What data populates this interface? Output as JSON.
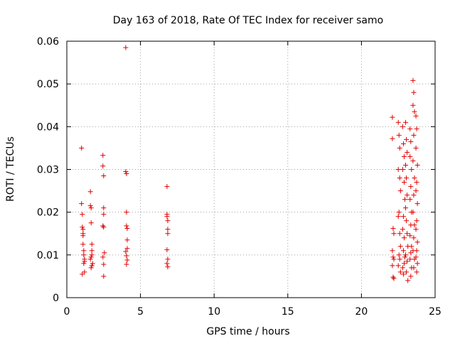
{
  "chart_data": {
    "type": "scatter",
    "title": "Day 163 of 2018, Rate Of TEC Index for receiver samo",
    "xlabel": "GPS time / hours",
    "ylabel": "ROTI / TECUs",
    "xlim": [
      0,
      25
    ],
    "ylim": [
      0,
      0.06
    ],
    "xticks": [
      0,
      5,
      10,
      15,
      20,
      25
    ],
    "yticks": [
      0,
      0.01,
      0.02,
      0.03,
      0.04,
      0.05,
      0.06
    ],
    "xtick_labels": [
      "0",
      "5",
      "10",
      "15",
      "20",
      "25"
    ],
    "ytick_labels": [
      "0",
      "0.01",
      "0.02",
      "0.03",
      "0.04",
      "0.05",
      "0.06"
    ],
    "grid": true,
    "marker": "plus",
    "color": "#e00000",
    "x": [
      1.0,
      1.0,
      1.05,
      1.05,
      1.1,
      1.1,
      1.1,
      1.15,
      1.15,
      1.2,
      1.2,
      1.2,
      1.05,
      1.1,
      1.15,
      1.6,
      1.6,
      1.65,
      1.65,
      1.7,
      1.7,
      1.7,
      1.65,
      1.6,
      1.75,
      1.7,
      1.65,
      2.45,
      2.45,
      2.5,
      2.5,
      2.5,
      2.45,
      2.5,
      2.55,
      2.45,
      2.5,
      2.5,
      4.0,
      4.0,
      4.05,
      4.05,
      4.05,
      4.1,
      4.1,
      4.1,
      4.0,
      4.05,
      4.1,
      4.05,
      6.8,
      6.8,
      6.8,
      6.85,
      6.85,
      6.85,
      6.8,
      6.85,
      6.8,
      6.85,
      22.1,
      22.1,
      22.15,
      22.2,
      22.1,
      22.15,
      22.2,
      22.1,
      22.15,
      22.2,
      22.5,
      22.55,
      22.6,
      22.5,
      22.6,
      22.65,
      22.55,
      22.5,
      22.6,
      22.65,
      22.55,
      22.6,
      22.5,
      22.65,
      22.8,
      22.85,
      22.9,
      22.8,
      22.9,
      22.95,
      22.85,
      22.8,
      22.9,
      22.85,
      22.95,
      22.9,
      22.8,
      22.85,
      23.0,
      23.05,
      23.1,
      23.0,
      23.05,
      23.1,
      23.0,
      23.05,
      23.1,
      23.15,
      23.0,
      23.1,
      23.05,
      23.15,
      23.3,
      23.35,
      23.3,
      23.4,
      23.35,
      23.3,
      23.4,
      23.35,
      23.3,
      23.4,
      23.35,
      23.3,
      23.4,
      23.35,
      23.5,
      23.55,
      23.5,
      23.6,
      23.55,
      23.5,
      23.6,
      23.55,
      23.5,
      23.6,
      23.55,
      23.5,
      23.6,
      23.55,
      23.7,
      23.75,
      23.7,
      23.8,
      23.75,
      23.7,
      23.8,
      23.75,
      23.7,
      23.8,
      23.75,
      23.7,
      23.8,
      23.75
    ],
    "y": [
      0.035,
      0.022,
      0.0195,
      0.0165,
      0.016,
      0.015,
      0.0125,
      0.011,
      0.01,
      0.009,
      0.0085,
      0.006,
      0.0055,
      0.0145,
      0.008,
      0.0248,
      0.0215,
      0.021,
      0.0175,
      0.0125,
      0.011,
      0.01,
      0.0095,
      0.009,
      0.008,
      0.0075,
      0.007,
      0.0333,
      0.0308,
      0.0285,
      0.021,
      0.0195,
      0.0168,
      0.0165,
      0.0105,
      0.0095,
      0.0078,
      0.005,
      0.0585,
      0.0295,
      0.029,
      0.02,
      0.0168,
      0.0162,
      0.0135,
      0.0115,
      0.0108,
      0.0098,
      0.0088,
      0.0078,
      0.026,
      0.0195,
      0.019,
      0.018,
      0.016,
      0.015,
      0.0112,
      0.009,
      0.008,
      0.0072,
      0.0422,
      0.0372,
      0.0162,
      0.015,
      0.011,
      0.0095,
      0.009,
      0.0075,
      0.0048,
      0.0045,
      0.041,
      0.038,
      0.035,
      0.03,
      0.028,
      0.025,
      0.02,
      0.019,
      0.015,
      0.012,
      0.01,
      0.009,
      0.0075,
      0.006,
      0.04,
      0.036,
      0.033,
      0.03,
      0.027,
      0.023,
      0.019,
      0.016,
      0.014,
      0.011,
      0.0095,
      0.008,
      0.007,
      0.0055,
      0.041,
      0.037,
      0.034,
      0.031,
      0.028,
      0.024,
      0.021,
      0.018,
      0.015,
      0.012,
      0.01,
      0.0085,
      0.006,
      0.004,
      0.0395,
      0.0365,
      0.033,
      0.03,
      0.026,
      0.023,
      0.02,
      0.017,
      0.0145,
      0.012,
      0.0105,
      0.009,
      0.007,
      0.005,
      0.0508,
      0.048,
      0.045,
      0.0435,
      0.038,
      0.032,
      0.028,
      0.024,
      0.02,
      0.017,
      0.014,
      0.011,
      0.009,
      0.007,
      0.0425,
      0.0395,
      0.035,
      0.031,
      0.027,
      0.025,
      0.022,
      0.018,
      0.016,
      0.013,
      0.011,
      0.0095,
      0.008,
      0.006
    ]
  }
}
